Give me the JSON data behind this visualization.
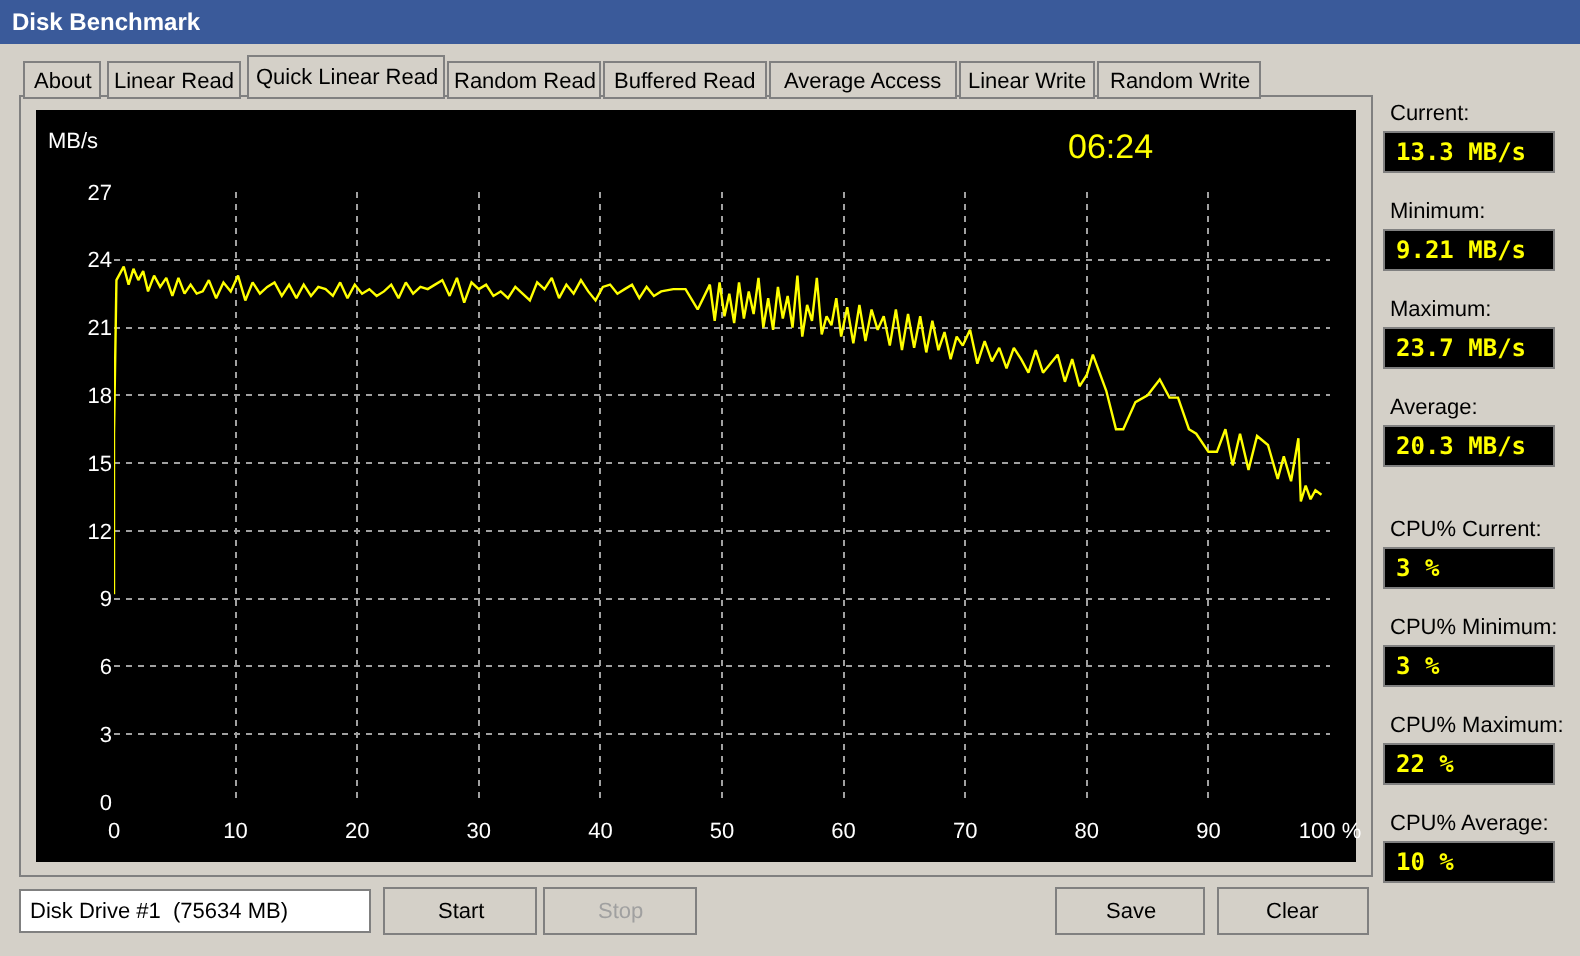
{
  "chart_data": {
    "type": "line",
    "title": "Disk Benchmark",
    "ylabel": "MB/s",
    "annotations": [
      "06:24",
      "About",
      "Linear Read",
      "Quick Linear Read",
      "Random Read",
      "Buffered Read",
      "Average Access",
      "Linear Write",
      "Random Write",
      "Current:",
      "13.3 MB/s",
      "Minimum:",
      "9.21 MB/s",
      "Maximum:",
      "23.7 MB/s",
      "Average:",
      "20.3 MB/s",
      "CPU% Current:",
      "3 %",
      "CPU% Minimum:",
      "3 %",
      "CPU% Maximum:",
      "22 %",
      "CPU% Average:",
      "10 %",
      "Disk Drive #1  (75634 MB)",
      "Start",
      "Stop",
      "Save",
      "Clear"
    ],
    "x": [
      0,
      0,
      0.2,
      0.8,
      1.2,
      1.6,
      2,
      2.4,
      2.8,
      3.3,
      3.8,
      4.3,
      4.8,
      5.3,
      5.8,
      6.3,
      6.8,
      7.3,
      7.8,
      8.4,
      9,
      9.6,
      10.2,
      10.8,
      11.4,
      12,
      12.6,
      13.2,
      13.8,
      14.4,
      15,
      15.6,
      16.2,
      16.8,
      17.4,
      18,
      18.6,
      19.2,
      19.8,
      20.4,
      21,
      21.6,
      22.2,
      22.8,
      23.4,
      24,
      24.6,
      25.2,
      25.8,
      26.4,
      27,
      27.6,
      28.2,
      28.8,
      29.4,
      30,
      30.6,
      31.2,
      31.8,
      32.4,
      33,
      33.6,
      34.2,
      34.8,
      35.4,
      36,
      36.6,
      37.2,
      37.8,
      38.4,
      39,
      39.6,
      40.2,
      40.8,
      41.4,
      42,
      42.6,
      43.2,
      43.8,
      44.4,
      45,
      46,
      47,
      48,
      49,
      49.4,
      49.8,
      50.2,
      50.6,
      51,
      51.4,
      51.8,
      52.2,
      52.6,
      53,
      53.4,
      53.8,
      54.2,
      54.6,
      55,
      55.4,
      55.8,
      56.2,
      56.6,
      57,
      57.4,
      57.8,
      58.2,
      58.6,
      59,
      59.4,
      59.8,
      60.3,
      60.8,
      61.3,
      61.8,
      62.3,
      62.8,
      63.3,
      63.8,
      64.3,
      64.8,
      65.3,
      65.8,
      66.3,
      66.8,
      67.3,
      67.8,
      68.3,
      68.8,
      69.3,
      69.8,
      70.4,
      71,
      71.6,
      72.2,
      72.8,
      73.4,
      74,
      74.6,
      75.2,
      75.8,
      76.4,
      77,
      77.6,
      78.2,
      78.8,
      79.4,
      80,
      80.5,
      81.6,
      82.4,
      83,
      84,
      85,
      86,
      86.8,
      87.5,
      88.4,
      89,
      90,
      90.7,
      91.4,
      92,
      92.6,
      93.3,
      94,
      94.9,
      95.7,
      96.2,
      96.8,
      97.4,
      97.6,
      98,
      98.4,
      98.8,
      99.3
    ],
    "series": [
      {
        "color": "#ffff00",
        "values": [
          9.2,
          16.3,
          23.1,
          23.7,
          22.9,
          23.6,
          23.1,
          23.5,
          22.6,
          23.3,
          22.8,
          23.2,
          22.4,
          23.2,
          22.5,
          22.9,
          22.5,
          22.6,
          23.1,
          22.3,
          23.0,
          22.6,
          23.3,
          22.2,
          23.0,
          22.5,
          22.8,
          23.0,
          22.4,
          22.9,
          22.3,
          22.9,
          22.4,
          22.8,
          22.7,
          22.4,
          23.0,
          22.3,
          22.9,
          22.5,
          22.7,
          22.4,
          22.6,
          22.9,
          22.3,
          23.0,
          22.5,
          22.8,
          22.7,
          22.9,
          23.1,
          22.4,
          23.2,
          22.1,
          23.0,
          22.7,
          22.9,
          22.4,
          22.6,
          22.3,
          22.8,
          22.5,
          22.2,
          23.0,
          22.7,
          23.2,
          22.3,
          22.9,
          22.5,
          23.1,
          22.6,
          22.2,
          22.8,
          22.9,
          22.5,
          22.7,
          22.9,
          22.3,
          22.8,
          22.4,
          22.6,
          22.7,
          22.7,
          21.8,
          22.9,
          21.3,
          23.0,
          21.5,
          22.5,
          21.2,
          23.0,
          21.4,
          22.6,
          21.6,
          23.2,
          21.0,
          22.3,
          20.9,
          22.8,
          21.4,
          22.4,
          21.0,
          23.3,
          20.6,
          22.0,
          21.3,
          23.2,
          20.7,
          21.5,
          21.1,
          22.3,
          20.6,
          21.9,
          20.3,
          22.0,
          20.4,
          21.8,
          20.9,
          21.5,
          20.2,
          21.8,
          20.0,
          21.6,
          20.1,
          21.5,
          19.9,
          21.3,
          20.0,
          20.8,
          19.6,
          20.6,
          20.2,
          20.9,
          19.4,
          20.4,
          19.5,
          20.1,
          19.2,
          20.1,
          19.6,
          19.0,
          20.0,
          19.0,
          19.4,
          19.8,
          18.6,
          19.6,
          18.4,
          18.9,
          19.8,
          18.2,
          16.5,
          16.5,
          17.7,
          18.0,
          18.7,
          17.9,
          17.9,
          16.5,
          16.3,
          15.5,
          15.5,
          16.5,
          14.9,
          16.3,
          14.7,
          16.2,
          15.8,
          14.3,
          15.3,
          14.2,
          16.1,
          13.3,
          14.0,
          13.4,
          13.8,
          13.6
        ]
      }
    ],
    "xlim": [
      0,
      100
    ],
    "ylim": [
      0,
      27
    ],
    "xticks": [
      0,
      10,
      20,
      30,
      40,
      50,
      60,
      70,
      80,
      90,
      {
        "value": 100,
        "label": "100 %"
      }
    ],
    "yticks": [
      0,
      3,
      6,
      9,
      12,
      15,
      18,
      21,
      24,
      27
    ],
    "grid": true,
    "line_style": "solid",
    "marker": "none"
  }
}
